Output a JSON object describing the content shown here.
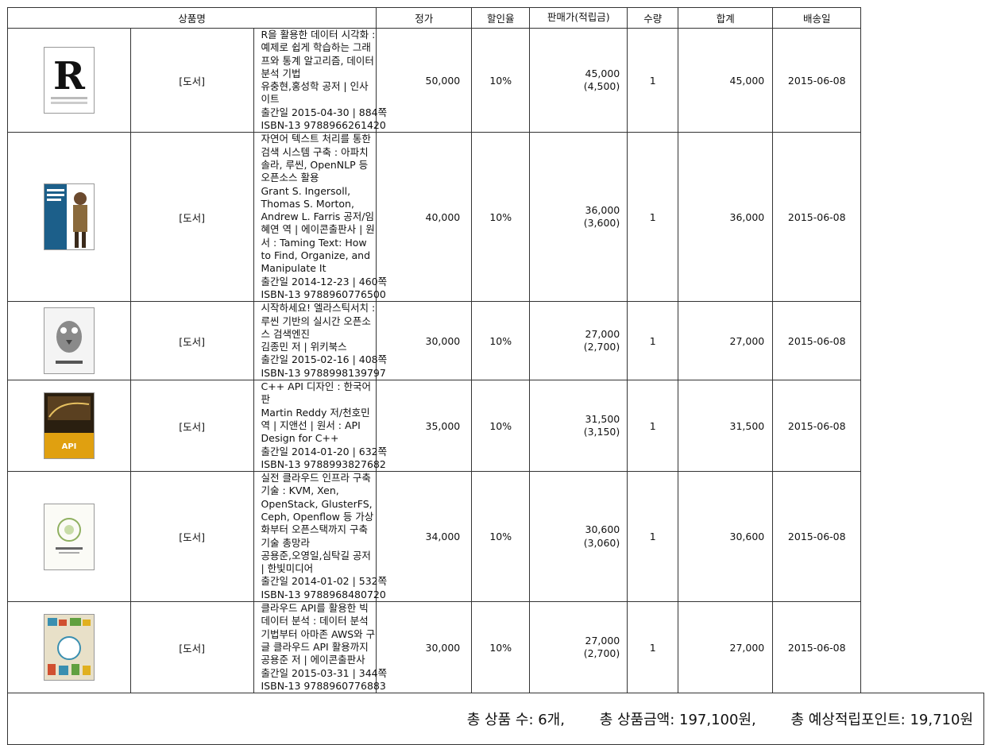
{
  "headers": {
    "product": "상품명",
    "list_price": "정가",
    "discount": "할인율",
    "sale_price": "판매가(적립금)",
    "quantity": "수량",
    "total": "합계",
    "ship_date": "배송일"
  },
  "items": [
    {
      "cover_icon": "book-cover-r-visualization",
      "type": "[도서]",
      "title": "R을 활용한 데이터 시각화 : 예제로 쉽게 학습하는 그래프와 통계 알고리즘, 데이터 분석 기법",
      "authors": "유충현,홍성학 공저 | 인사이트",
      "pub": "출간일 2015-04-30 | 884쪽",
      "isbn": "ISBN-13 9788966261420",
      "list_price": "50,000",
      "discount": "10%",
      "sale_price": "45,000",
      "points": "(4,500)",
      "quantity": "1",
      "total": "45,000",
      "ship_date": "2015-06-08"
    },
    {
      "cover_icon": "book-cover-taming-text",
      "type": "[도서]",
      "title": "자연어 텍스트 처리를 통한 검색 시스템 구축 : 아파치 솔라, 루씬, OpenNLP 등 오픈소스 활용",
      "authors": "Grant S. Ingersoll, Thomas S. Morton, Andrew L. Farris 공저/임혜연 역 | 에이콘출판사 | 원서 : Taming Text: How to Find, Organize, and Manipulate It",
      "pub": "출간일 2014-12-23 | 460쪽",
      "isbn": "ISBN-13 9788960776500",
      "list_price": "40,000",
      "discount": "10%",
      "sale_price": "36,000",
      "points": "(3,600)",
      "quantity": "1",
      "total": "36,000",
      "ship_date": "2015-06-08"
    },
    {
      "cover_icon": "book-cover-elasticsearch",
      "type": "[도서]",
      "title": "시작하세요! 엘라스틱서치 : 루씬 기반의 실시간 오픈소스 검색엔진",
      "authors": "김종민 저 | 위키북스",
      "pub": "출간일 2015-02-16 | 408쪽",
      "isbn": "ISBN-13 9788998139797",
      "list_price": "30,000",
      "discount": "10%",
      "sale_price": "27,000",
      "points": "(2,700)",
      "quantity": "1",
      "total": "27,000",
      "ship_date": "2015-06-08"
    },
    {
      "cover_icon": "book-cover-cpp-api-design",
      "type": "[도서]",
      "title": "C++ API 디자인 : 한국어판",
      "authors": "Martin Reddy 저/천호민 역 | 지앤선 | 원서 : API Design for C++",
      "pub": "출간일 2014-01-20 | 632쪽",
      "isbn": "ISBN-13 9788993827682",
      "list_price": "35,000",
      "discount": "10%",
      "sale_price": "31,500",
      "points": "(3,150)",
      "quantity": "1",
      "total": "31,500",
      "ship_date": "2015-06-08"
    },
    {
      "cover_icon": "book-cover-cloud-infra",
      "type": "[도서]",
      "title": "실전 클라우드 인프라 구축 기술 : KVM, Xen, OpenStack, GlusterFS, Ceph, Openflow 등 가상화부터 오픈스택까지 구축 기술 총망라",
      "authors": "공용준,오영일,심탁길 공저 | 한빛미디어",
      "pub": "출간일 2014-01-02 | 532쪽",
      "isbn": "ISBN-13 9788968480720",
      "list_price": "34,000",
      "discount": "10%",
      "sale_price": "30,600",
      "points": "(3,060)",
      "quantity": "1",
      "total": "30,600",
      "ship_date": "2015-06-08"
    },
    {
      "cover_icon": "book-cover-cloud-api-bigdata",
      "type": "[도서]",
      "title": "클라우드 API를 활용한 빅데이터 분석 : 데이터 분석 기법부터 아마존 AWS와 구글 클라우드 API 활용까지",
      "authors": "공용준 저 | 에이콘출판사",
      "pub": "출간일 2015-03-31 | 344쪽",
      "isbn": "ISBN-13 9788960776883",
      "list_price": "30,000",
      "discount": "10%",
      "sale_price": "27,000",
      "points": "(2,700)",
      "quantity": "1",
      "total": "27,000",
      "ship_date": "2015-06-08"
    }
  ],
  "summary": {
    "count": "총 상품 수: 6개,",
    "amount": "총 상품금액: 197,100원,",
    "points": "총 예상적립포인트: 19,710원"
  }
}
